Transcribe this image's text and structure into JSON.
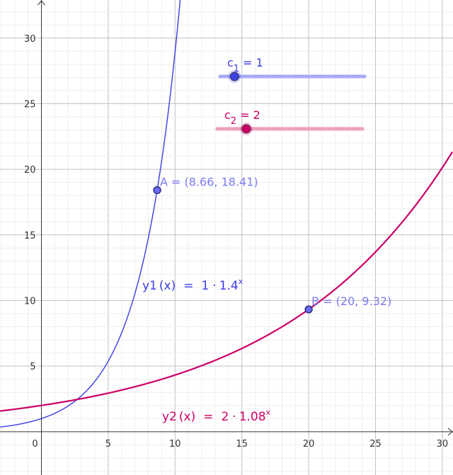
{
  "chart_data": {
    "type": "line",
    "xlim": [
      -3.1,
      30.8
    ],
    "ylim": [
      -3.3,
      32.9
    ],
    "grid": true,
    "x_ticks": [
      0,
      5,
      10,
      15,
      20,
      25,
      30
    ],
    "y_ticks": [
      5,
      10,
      15,
      20,
      25,
      30
    ],
    "origin_label": "0",
    "series": [
      {
        "key": "y1",
        "a": 1,
        "b": 1.4,
        "color": "#3b3be8",
        "label_name": "y1",
        "label_arg": "(x)",
        "label_eq": "=",
        "label_coef": "1",
        "label_dot": "·",
        "label_base": "1.4",
        "label_exp": "x"
      },
      {
        "key": "y2",
        "a": 2,
        "b": 1.08,
        "color": "#cc0066",
        "label_name": "y2",
        "label_arg": "(x)",
        "label_eq": "=",
        "label_coef": "2",
        "label_dot": "·",
        "label_base": "1.08",
        "label_exp": "x"
      }
    ],
    "points": [
      {
        "name": "A",
        "x": 8.66,
        "y": 18.41,
        "label": "A = (8.66, 18.41)"
      },
      {
        "name": "B",
        "x": 20,
        "y": 9.32,
        "label": "B = (20, 9.32)"
      }
    ],
    "sliders": [
      {
        "name": "c",
        "sub": "1",
        "value_text": "= 1",
        "value": 1,
        "color": "#4040e0",
        "track_color": "#a8aaf2",
        "handle_fraction": 0.1
      },
      {
        "name": "c",
        "sub": "2",
        "value_text": "= 2",
        "value": 2,
        "color": "#cc0066",
        "track_color": "#ee9fbf",
        "handle_fraction": 0.2
      }
    ],
    "point_label_color": "#7b7bf0"
  }
}
